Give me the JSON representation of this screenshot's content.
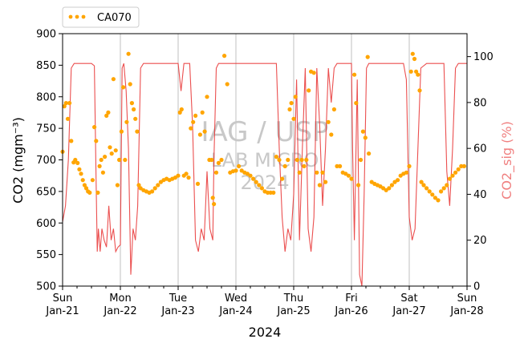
{
  "chart_data": {
    "type": "line",
    "xlabel": "2024",
    "ylabel_left": "CO2 (mgm⁻³)",
    "ylabel_right": "CO2_sig (%)",
    "ylim_left": [
      500,
      900
    ],
    "ylim_right": [
      0,
      110
    ],
    "yticks_left": [
      500,
      550,
      600,
      650,
      700,
      750,
      800,
      850,
      900
    ],
    "yticks_right": [
      0,
      20,
      40,
      60,
      80,
      100
    ],
    "xlim": [
      0,
      7
    ],
    "x_ticks": [
      {
        "day": 0,
        "weekday": "Sun",
        "date": "Jan-21"
      },
      {
        "day": 1,
        "weekday": "Mon",
        "date": "Jan-22"
      },
      {
        "day": 2,
        "weekday": "Tue",
        "date": "Jan-23"
      },
      {
        "day": 3,
        "weekday": "Wed",
        "date": "Jan-24"
      },
      {
        "day": 4,
        "weekday": "Thu",
        "date": "Jan-25"
      },
      {
        "day": 5,
        "weekday": "Fri",
        "date": "Jan-26"
      },
      {
        "day": 6,
        "weekday": "Sat",
        "date": "Jan-27"
      },
      {
        "day": 7,
        "weekday": "Sun",
        "date": "Jan-28"
      }
    ],
    "grid": "vertical",
    "legend": {
      "position": "top-left",
      "entries": [
        "CA070"
      ]
    },
    "watermark": {
      "line1": "IAG / USP",
      "line2": "LAB MICRO",
      "line3": "2024"
    },
    "series": [
      {
        "name": "CA070",
        "kind": "scatter",
        "axis": "left",
        "color": "#ffa500",
        "points": [
          [
            0.0,
            713
          ],
          [
            0.03,
            785
          ],
          [
            0.06,
            790
          ],
          [
            0.09,
            765
          ],
          [
            0.12,
            790
          ],
          [
            0.15,
            730
          ],
          [
            0.19,
            696
          ],
          [
            0.22,
            700
          ],
          [
            0.26,
            695
          ],
          [
            0.29,
            685
          ],
          [
            0.32,
            678
          ],
          [
            0.35,
            668
          ],
          [
            0.38,
            660
          ],
          [
            0.41,
            655
          ],
          [
            0.44,
            650
          ],
          [
            0.47,
            648
          ],
          [
            0.52,
            668
          ],
          [
            0.55,
            752
          ],
          [
            0.58,
            730
          ],
          [
            0.61,
            648
          ],
          [
            0.64,
            690
          ],
          [
            0.67,
            700
          ],
          [
            0.7,
            680
          ],
          [
            0.73,
            705
          ],
          [
            0.76,
            770
          ],
          [
            0.79,
            775
          ],
          [
            0.82,
            720
          ],
          [
            0.85,
            710
          ],
          [
            0.88,
            828
          ],
          [
            0.92,
            715
          ],
          [
            0.95,
            660
          ],
          [
            0.98,
            700
          ],
          [
            1.02,
            745
          ],
          [
            1.05,
            815
          ],
          [
            1.08,
            700
          ],
          [
            1.11,
            760
          ],
          [
            1.14,
            868
          ],
          [
            1.17,
            820
          ],
          [
            1.2,
            790
          ],
          [
            1.23,
            780
          ],
          [
            1.26,
            765
          ],
          [
            1.29,
            745
          ],
          [
            1.32,
            660
          ],
          [
            1.35,
            655
          ],
          [
            1.4,
            652
          ],
          [
            1.45,
            650
          ],
          [
            1.5,
            648
          ],
          [
            1.55,
            650
          ],
          [
            1.6,
            655
          ],
          [
            1.65,
            660
          ],
          [
            1.7,
            665
          ],
          [
            1.75,
            668
          ],
          [
            1.8,
            670
          ],
          [
            1.85,
            668
          ],
          [
            1.9,
            670
          ],
          [
            1.95,
            672
          ],
          [
            2.0,
            675
          ],
          [
            2.03,
            775
          ],
          [
            2.06,
            780
          ],
          [
            2.1,
            675
          ],
          [
            2.14,
            678
          ],
          [
            2.18,
            672
          ],
          [
            2.22,
            750
          ],
          [
            2.26,
            760
          ],
          [
            2.3,
            770
          ],
          [
            2.34,
            662
          ],
          [
            2.38,
            740
          ],
          [
            2.42,
            775
          ],
          [
            2.46,
            745
          ],
          [
            2.5,
            800
          ],
          [
            2.54,
            700
          ],
          [
            2.58,
            700
          ],
          [
            2.6,
            640
          ],
          [
            2.62,
            630
          ],
          [
            2.66,
            680
          ],
          [
            2.7,
            695
          ],
          [
            2.75,
            700
          ],
          [
            2.8,
            865
          ],
          [
            2.85,
            820
          ],
          [
            2.9,
            680
          ],
          [
            2.95,
            682
          ],
          [
            3.0,
            683
          ],
          [
            3.05,
            690
          ],
          [
            3.1,
            683
          ],
          [
            3.15,
            680
          ],
          [
            3.2,
            678
          ],
          [
            3.25,
            675
          ],
          [
            3.3,
            670
          ],
          [
            3.35,
            665
          ],
          [
            3.4,
            660
          ],
          [
            3.45,
            655
          ],
          [
            3.5,
            650
          ],
          [
            3.55,
            648
          ],
          [
            3.6,
            648
          ],
          [
            3.65,
            648
          ],
          [
            3.7,
            705
          ],
          [
            3.75,
            700
          ],
          [
            3.8,
            670
          ],
          [
            3.85,
            690
          ],
          [
            3.9,
            700
          ],
          [
            3.93,
            780
          ],
          [
            3.96,
            790
          ],
          [
            4.0,
            765
          ],
          [
            4.03,
            800
          ],
          [
            4.06,
            700
          ],
          [
            4.1,
            680
          ],
          [
            4.14,
            700
          ],
          [
            4.18,
            690
          ],
          [
            4.22,
            700
          ],
          [
            4.26,
            810
          ],
          [
            4.3,
            840
          ],
          [
            4.35,
            838
          ],
          [
            4.4,
            680
          ],
          [
            4.45,
            660
          ],
          [
            4.5,
            680
          ],
          [
            4.55,
            665
          ],
          [
            4.6,
            760
          ],
          [
            4.65,
            740
          ],
          [
            4.7,
            780
          ],
          [
            4.75,
            690
          ],
          [
            4.8,
            690
          ],
          [
            4.85,
            680
          ],
          [
            4.9,
            678
          ],
          [
            4.95,
            675
          ],
          [
            5.0,
            670
          ],
          [
            5.05,
            835
          ],
          [
            5.08,
            790
          ],
          [
            5.12,
            660
          ],
          [
            5.16,
            700
          ],
          [
            5.2,
            745
          ],
          [
            5.24,
            735
          ],
          [
            5.28,
            863
          ],
          [
            5.3,
            710
          ],
          [
            5.35,
            665
          ],
          [
            5.4,
            662
          ],
          [
            5.45,
            660
          ],
          [
            5.5,
            658
          ],
          [
            5.55,
            655
          ],
          [
            5.6,
            652
          ],
          [
            5.65,
            655
          ],
          [
            5.7,
            660
          ],
          [
            5.75,
            665
          ],
          [
            5.8,
            668
          ],
          [
            5.85,
            675
          ],
          [
            5.9,
            678
          ],
          [
            5.95,
            680
          ],
          [
            6.0,
            690
          ],
          [
            6.03,
            840
          ],
          [
            6.06,
            868
          ],
          [
            6.09,
            860
          ],
          [
            6.12,
            840
          ],
          [
            6.15,
            835
          ],
          [
            6.18,
            810
          ],
          [
            6.21,
            665
          ],
          [
            6.25,
            660
          ],
          [
            6.3,
            655
          ],
          [
            6.35,
            650
          ],
          [
            6.4,
            645
          ],
          [
            6.45,
            640
          ],
          [
            6.5,
            636
          ],
          [
            6.55,
            650
          ],
          [
            6.6,
            655
          ],
          [
            6.65,
            660
          ],
          [
            6.7,
            670
          ],
          [
            6.75,
            675
          ],
          [
            6.8,
            680
          ],
          [
            6.85,
            685
          ],
          [
            6.9,
            690
          ],
          [
            6.95,
            690
          ]
        ]
      },
      {
        "name": "",
        "kind": "line",
        "axis": "right",
        "color": "#e83030",
        "points": [
          [
            0.0,
            28
          ],
          [
            0.05,
            35
          ],
          [
            0.1,
            55
          ],
          [
            0.15,
            95
          ],
          [
            0.2,
            97
          ],
          [
            0.3,
            97
          ],
          [
            0.4,
            97
          ],
          [
            0.5,
            97
          ],
          [
            0.55,
            96
          ],
          [
            0.58,
            45
          ],
          [
            0.6,
            15
          ],
          [
            0.62,
            25
          ],
          [
            0.65,
            15
          ],
          [
            0.68,
            25
          ],
          [
            0.72,
            20
          ],
          [
            0.76,
            17
          ],
          [
            0.8,
            35
          ],
          [
            0.84,
            20
          ],
          [
            0.88,
            25
          ],
          [
            0.92,
            15
          ],
          [
            0.96,
            17
          ],
          [
            1.0,
            18
          ],
          [
            1.03,
            95
          ],
          [
            1.06,
            97
          ],
          [
            1.1,
            85
          ],
          [
            1.14,
            60
          ],
          [
            1.18,
            5
          ],
          [
            1.22,
            25
          ],
          [
            1.26,
            20
          ],
          [
            1.3,
            35
          ],
          [
            1.35,
            95
          ],
          [
            1.4,
            97
          ],
          [
            1.5,
            97
          ],
          [
            1.6,
            97
          ],
          [
            1.7,
            97
          ],
          [
            1.8,
            97
          ],
          [
            1.9,
            97
          ],
          [
            2.0,
            97
          ],
          [
            2.05,
            85
          ],
          [
            2.1,
            97
          ],
          [
            2.2,
            97
          ],
          [
            2.25,
            70
          ],
          [
            2.3,
            20
          ],
          [
            2.35,
            15
          ],
          [
            2.4,
            25
          ],
          [
            2.45,
            20
          ],
          [
            2.5,
            50
          ],
          [
            2.55,
            25
          ],
          [
            2.6,
            20
          ],
          [
            2.62,
            55
          ],
          [
            2.66,
            95
          ],
          [
            2.7,
            97
          ],
          [
            2.8,
            97
          ],
          [
            2.9,
            97
          ],
          [
            3.0,
            97
          ],
          [
            3.1,
            97
          ],
          [
            3.2,
            97
          ],
          [
            3.3,
            97
          ],
          [
            3.4,
            97
          ],
          [
            3.5,
            97
          ],
          [
            3.6,
            97
          ],
          [
            3.7,
            97
          ],
          [
            3.75,
            60
          ],
          [
            3.8,
            30
          ],
          [
            3.85,
            15
          ],
          [
            3.9,
            25
          ],
          [
            3.95,
            20
          ],
          [
            4.0,
            40
          ],
          [
            4.05,
            90
          ],
          [
            4.1,
            20
          ],
          [
            4.15,
            60
          ],
          [
            4.2,
            95
          ],
          [
            4.25,
            25
          ],
          [
            4.3,
            15
          ],
          [
            4.35,
            30
          ],
          [
            4.4,
            95
          ],
          [
            4.45,
            70
          ],
          [
            4.5,
            35
          ],
          [
            4.55,
            60
          ],
          [
            4.6,
            95
          ],
          [
            4.65,
            80
          ],
          [
            4.7,
            95
          ],
          [
            4.75,
            97
          ],
          [
            4.8,
            97
          ],
          [
            4.9,
            97
          ],
          [
            5.0,
            97
          ],
          [
            5.02,
            60
          ],
          [
            5.05,
            20
          ],
          [
            5.1,
            90
          ],
          [
            5.14,
            5
          ],
          [
            5.18,
            0
          ],
          [
            5.22,
            40
          ],
          [
            5.26,
            95
          ],
          [
            5.3,
            97
          ],
          [
            5.4,
            97
          ],
          [
            5.5,
            97
          ],
          [
            5.6,
            97
          ],
          [
            5.7,
            97
          ],
          [
            5.8,
            97
          ],
          [
            5.9,
            97
          ],
          [
            5.95,
            90
          ],
          [
            6.0,
            30
          ],
          [
            6.05,
            20
          ],
          [
            6.1,
            25
          ],
          [
            6.15,
            60
          ],
          [
            6.2,
            95
          ],
          [
            6.3,
            97
          ],
          [
            6.4,
            97
          ],
          [
            6.5,
            97
          ],
          [
            6.6,
            97
          ],
          [
            6.65,
            50
          ],
          [
            6.7,
            35
          ],
          [
            6.75,
            60
          ],
          [
            6.8,
            95
          ],
          [
            6.85,
            97
          ],
          [
            6.9,
            97
          ],
          [
            7.0,
            97
          ]
        ]
      }
    ]
  }
}
